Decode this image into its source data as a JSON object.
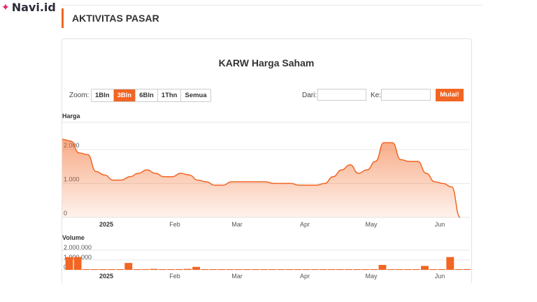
{
  "brand": {
    "logo_text": "Navi.id",
    "accent": "#f26522"
  },
  "section": {
    "title": "AKTIVITAS PASAR"
  },
  "controls": {
    "zoom_label": "Zoom:",
    "zoom_buttons": [
      "1Bln",
      "3Bln",
      "6Bln",
      "1Thn",
      "Semua"
    ],
    "active_zoom": "3Bln",
    "from_label": "Dari:",
    "to_label": "Ke:",
    "from_value": "",
    "to_value": "",
    "go_label": "Mulai!"
  },
  "chart_data": {
    "type": "area",
    "title": "KARW Harga Saham",
    "price_axis_label": "Harga",
    "volume_axis_label": "Volume",
    "x_ticks": [
      "2025",
      "Feb",
      "Mar",
      "Apr",
      "May",
      "Jun"
    ],
    "price_ticks": [
      "0",
      "1.000",
      "2.000"
    ],
    "volume_ticks": [
      "0",
      "1.000.000",
      "2.000.000"
    ],
    "ylim": [
      0,
      2800
    ],
    "grid": true,
    "series": [
      {
        "values": [
          2300,
          2250,
          1900,
          1850,
          1350,
          1250,
          1100,
          1100,
          1200,
          1300,
          1400,
          1300,
          1200,
          1200,
          1300,
          1250,
          1100,
          1050,
          950,
          950,
          1050,
          1050,
          1050,
          1050,
          1050,
          1000,
          1000,
          1000,
          950,
          950,
          950,
          1000,
          1200,
          1400,
          1550,
          1300,
          1400,
          1650,
          2200,
          2200,
          1700,
          1650,
          1650,
          1300,
          1050,
          1000,
          900,
          0
        ]
      }
    ],
    "volume": [
      1300000,
      1300000,
      0,
      0,
      0,
      0,
      0,
      700000,
      0,
      0,
      100000,
      0,
      0,
      0,
      100000,
      300000,
      0,
      0,
      0,
      0,
      0,
      0,
      0,
      0,
      0,
      0,
      0,
      0,
      0,
      0,
      0,
      0,
      0,
      0,
      0,
      0,
      0,
      500000,
      0,
      0,
      0,
      0,
      400000,
      0,
      0,
      1300000,
      0,
      0
    ]
  }
}
